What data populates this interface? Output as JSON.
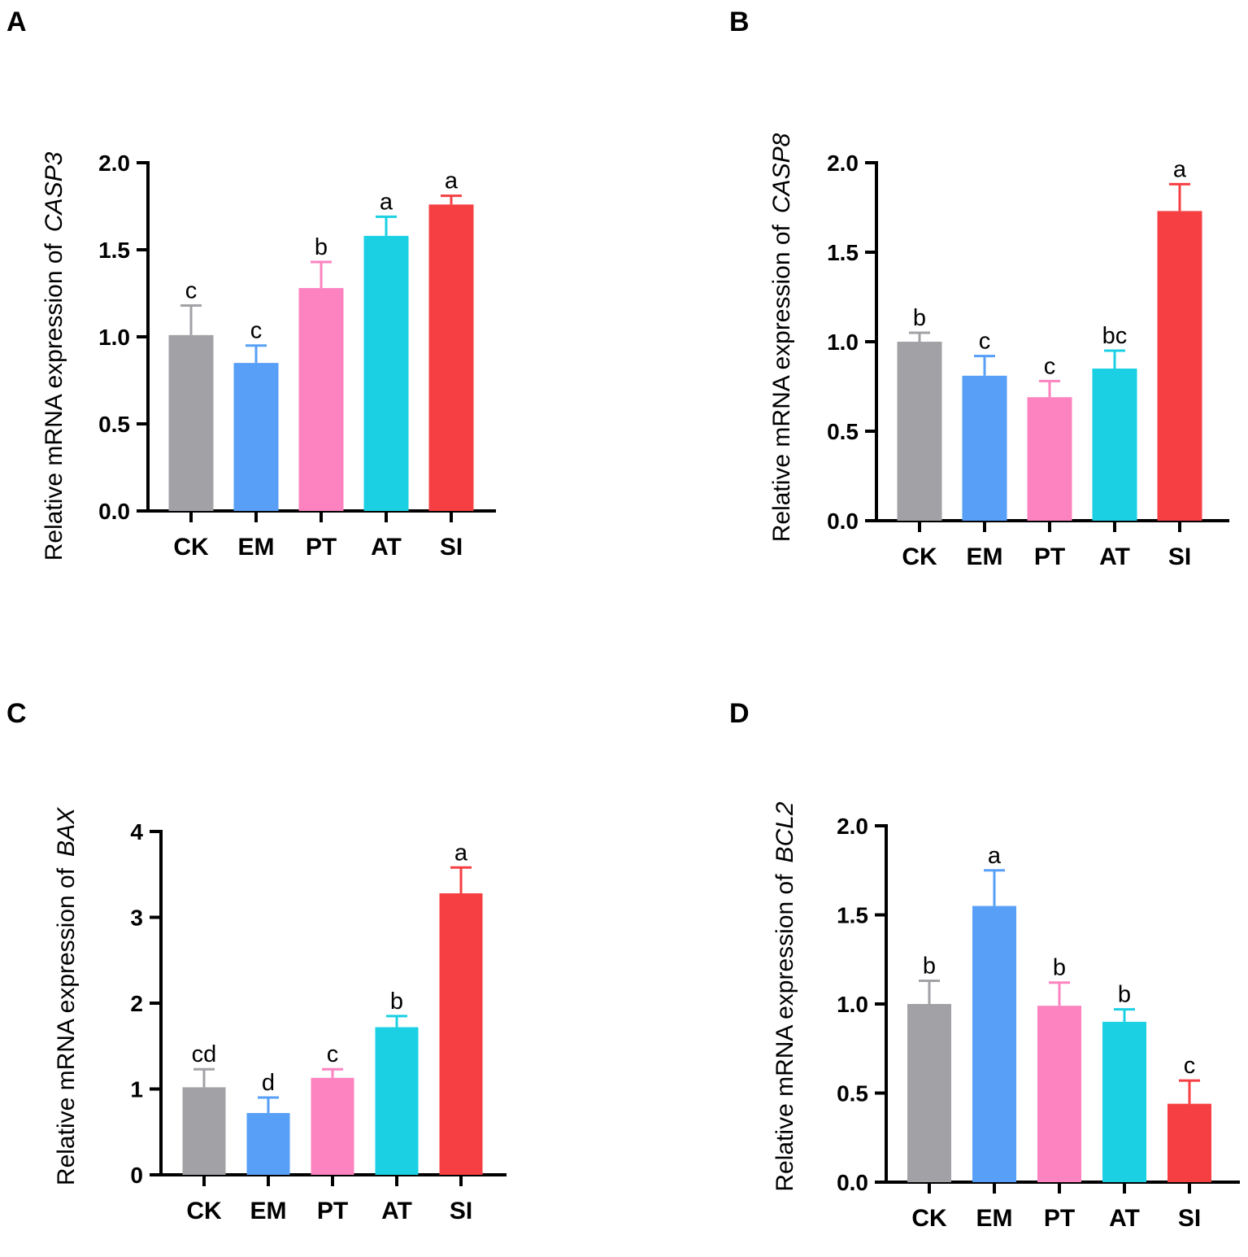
{
  "colors": {
    "CK": "#a2a1a6",
    "EM": "#579ff7",
    "PT": "#fc83bf",
    "AT": "#1bd0e3",
    "SI": "#f63f43"
  },
  "chart_data": [
    {
      "type": "bar",
      "panel": "A",
      "ylabel_prefix": "Relative mRNA expression of",
      "gene": "CASP3",
      "categories": [
        "CK",
        "EM",
        "PT",
        "AT",
        "SI"
      ],
      "values": [
        1.01,
        0.85,
        1.28,
        1.58,
        1.76
      ],
      "errors": [
        0.17,
        0.1,
        0.15,
        0.11,
        0.05
      ],
      "letters": [
        "c",
        "c",
        "b",
        "a",
        "a"
      ],
      "ylim": [
        0,
        2
      ],
      "yticks": [
        "0.0",
        "0.5",
        "1.0",
        "1.5",
        "2.0"
      ]
    },
    {
      "type": "bar",
      "panel": "B",
      "ylabel_prefix": "Relative mRNA expression of",
      "gene": "CASP8",
      "categories": [
        "CK",
        "EM",
        "PT",
        "AT",
        "SI"
      ],
      "values": [
        1.0,
        0.81,
        0.69,
        0.85,
        1.73
      ],
      "errors": [
        0.05,
        0.11,
        0.09,
        0.1,
        0.15
      ],
      "letters": [
        "b",
        "c",
        "c",
        "bc",
        "a"
      ],
      "ylim": [
        0,
        2
      ],
      "yticks": [
        "0.0",
        "0.5",
        "1.0",
        "1.5",
        "2.0"
      ]
    },
    {
      "type": "bar",
      "panel": "C",
      "ylabel_prefix": "Relative mRNA expression of",
      "gene": "BAX",
      "categories": [
        "CK",
        "EM",
        "PT",
        "AT",
        "SI"
      ],
      "values": [
        1.02,
        0.72,
        1.13,
        1.72,
        3.28
      ],
      "errors": [
        0.21,
        0.18,
        0.1,
        0.13,
        0.3
      ],
      "letters": [
        "cd",
        "d",
        "c",
        "b",
        "a"
      ],
      "ylim": [
        0,
        4
      ],
      "yticks": [
        "0",
        "1",
        "2",
        "3",
        "4"
      ]
    },
    {
      "type": "bar",
      "panel": "D",
      "ylabel_prefix": "Relative mRNA expression of",
      "gene": "BCL2",
      "categories": [
        "CK",
        "EM",
        "PT",
        "AT",
        "SI"
      ],
      "values": [
        1.0,
        1.55,
        0.99,
        0.9,
        0.44
      ],
      "errors": [
        0.13,
        0.2,
        0.13,
        0.07,
        0.13
      ],
      "letters": [
        "b",
        "a",
        "b",
        "b",
        "c"
      ],
      "ylim": [
        0,
        2
      ],
      "yticks": [
        "0.0",
        "0.5",
        "1.0",
        "1.5",
        "2.0"
      ]
    }
  ]
}
